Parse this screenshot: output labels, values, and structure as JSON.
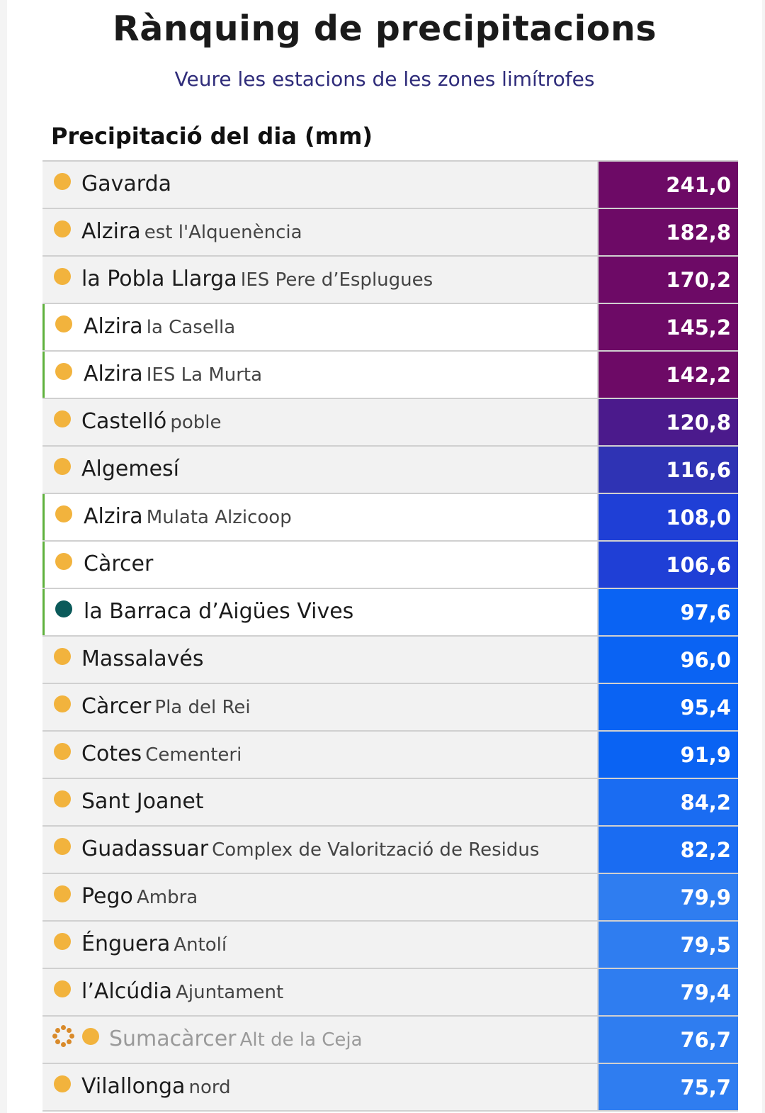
{
  "header": {
    "title": "Rànquing de precipitacions",
    "link": "Veure les estacions de les zones limítrofes",
    "section": "Precipitació del dia (mm)"
  },
  "colors": {
    "dot_orange": "#f2b33d",
    "dot_teal": "#0b5a5a",
    "highlight_border": "#5fb13d"
  },
  "rows": [
    {
      "muni": "Gavarda",
      "station": "",
      "value": "241,0",
      "color": "#6d0a66",
      "hl": false
    },
    {
      "muni": "Alzira",
      "station": "est l'Alquenència",
      "value": "182,8",
      "color": "#6d0a66",
      "hl": false
    },
    {
      "muni": "la Pobla Llarga",
      "station": "IES Pere d’Esplugues",
      "value": "170,2",
      "color": "#6d0a66",
      "hl": false
    },
    {
      "muni": "Alzira",
      "station": "la Casella",
      "value": "145,2",
      "color": "#6d0a66",
      "hl": true
    },
    {
      "muni": "Alzira",
      "station": "IES La Murta",
      "value": "142,2",
      "color": "#6d0a66",
      "hl": true
    },
    {
      "muni": "Castelló",
      "station": "poble",
      "value": "120,8",
      "color": "#4b1a8c",
      "hl": false
    },
    {
      "muni": "Algemesí",
      "station": "",
      "value": "116,6",
      "color": "#2f33b4",
      "hl": false
    },
    {
      "muni": "Alzira",
      "station": "Mulata Alzicoop",
      "value": "108,0",
      "color": "#1f3fd6",
      "hl": true
    },
    {
      "muni": "Càrcer",
      "station": "",
      "value": "106,6",
      "color": "#1f3fd6",
      "hl": true
    },
    {
      "muni": "la Barraca d’Aigües Vives",
      "station": "",
      "value": "97,6",
      "color": "#0a63f3",
      "hl": true,
      "dot": "teal"
    },
    {
      "muni": "Massalavés",
      "station": "",
      "value": "96,0",
      "color": "#0a63f3",
      "hl": false
    },
    {
      "muni": "Càrcer",
      "station": "Pla del Rei",
      "value": "95,4",
      "color": "#0a63f3",
      "hl": false
    },
    {
      "muni": "Cotes",
      "station": "Cementeri",
      "value": "91,9",
      "color": "#0a63f3",
      "hl": false
    },
    {
      "muni": "Sant Joanet",
      "station": "",
      "value": "84,2",
      "color": "#1a6cf2",
      "hl": false
    },
    {
      "muni": "Guadassuar",
      "station": "Complex de Valorització de Residus",
      "value": "82,2",
      "color": "#1a6cf2",
      "hl": false
    },
    {
      "muni": "Pego",
      "station": "Ambra",
      "value": "79,9",
      "color": "#2f7df0",
      "hl": false
    },
    {
      "muni": "Énguera",
      "station": "Antolí",
      "value": "79,5",
      "color": "#2f7df0",
      "hl": false
    },
    {
      "muni": "l’Alcúdia",
      "station": "Ajuntament",
      "value": "79,4",
      "color": "#2f7df0",
      "hl": false
    },
    {
      "muni": "Sumacàrcer",
      "station": "Alt de la Ceja",
      "value": "76,7",
      "color": "#2f7df0",
      "hl": false,
      "grey": true,
      "spinner": true
    },
    {
      "muni": "Vilallonga",
      "station": "nord",
      "value": "75,7",
      "color": "#2f7df0",
      "hl": false
    }
  ]
}
